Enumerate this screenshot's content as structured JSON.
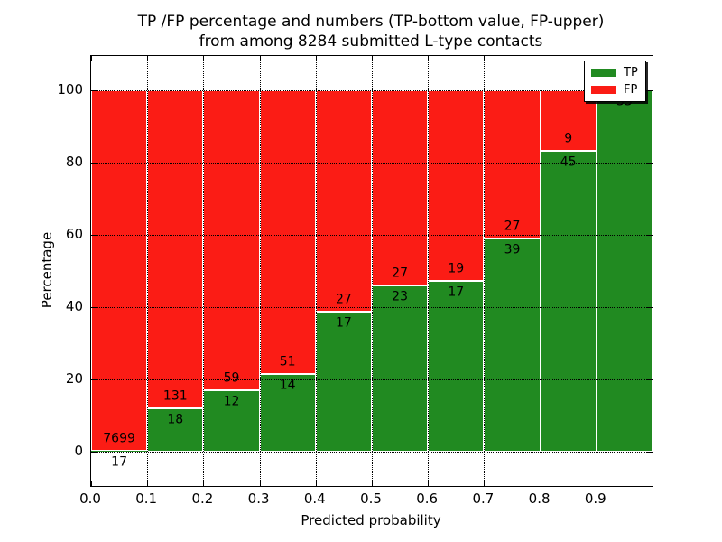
{
  "figure": {
    "title_line1": "TP /FP percentage and numbers (TP-bottom value, FP-upper)",
    "title_line2": "from among 8284 submitted L-type contacts",
    "xlabel": "Predicted probability",
    "ylabel": "Percentage"
  },
  "legend": {
    "position": "upper right",
    "items": [
      {
        "label": "TP",
        "color": "#218a21"
      },
      {
        "label": "FP",
        "color": "#fb1c15"
      }
    ]
  },
  "colors": {
    "tp": "#218a21",
    "fp": "#fb1c15",
    "background": "#ffffff",
    "text": "#000000",
    "grid": "#000000",
    "bar_edge": "#ffffff"
  },
  "chart_data": {
    "type": "bar",
    "stacked": true,
    "normalized_to_percent": true,
    "title": "TP /FP percentage and numbers (TP-bottom value, FP-upper) from among 8284 submitted L-type contacts",
    "xlabel": "Predicted probability",
    "ylabel": "Percentage",
    "total_submitted": 8284,
    "bin_edges": [
      0.0,
      0.1,
      0.2,
      0.3,
      0.4,
      0.5,
      0.6,
      0.7,
      0.8,
      0.9,
      1.0
    ],
    "x_tick_labels": [
      "0.0",
      "0.1",
      "0.2",
      "0.3",
      "0.4",
      "0.5",
      "0.6",
      "0.7",
      "0.8",
      "0.9"
    ],
    "y_tick_values": [
      0,
      20,
      40,
      60,
      80,
      100
    ],
    "y_tick_labels": [
      "0",
      "20",
      "40",
      "60",
      "80",
      "100"
    ],
    "ylim": [
      -9.5,
      109.5
    ],
    "grid": true,
    "grid_style": "dotted",
    "legend_position": "upper right",
    "series": [
      {
        "name": "TP",
        "counts": [
          17,
          18,
          12,
          14,
          17,
          23,
          17,
          39,
          45,
          33
        ]
      },
      {
        "name": "FP",
        "counts": [
          7699,
          131,
          59,
          51,
          27,
          27,
          19,
          27,
          9,
          0
        ]
      }
    ],
    "tp_percent_heights": [
      0.22,
      12.08,
      16.9,
      21.54,
      38.64,
      46.0,
      47.22,
      59.09,
      83.33,
      100.0
    ],
    "tp_label_visible": [
      true,
      true,
      true,
      true,
      true,
      true,
      true,
      true,
      true,
      true
    ],
    "fp_label_visible": [
      true,
      true,
      true,
      true,
      true,
      true,
      true,
      true,
      true,
      false
    ]
  }
}
